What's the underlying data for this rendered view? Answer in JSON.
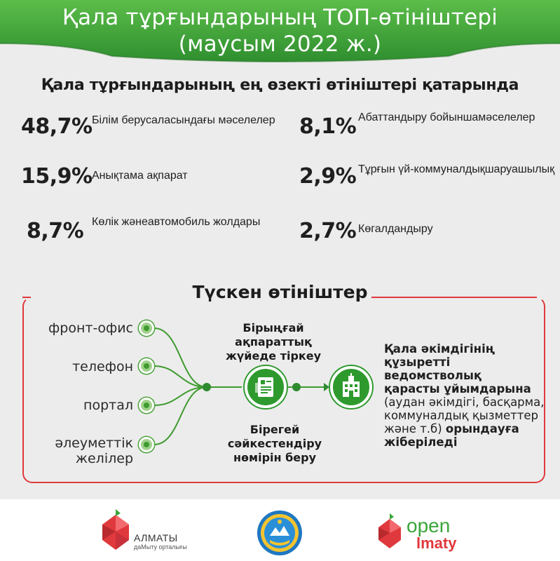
{
  "header": {
    "title_line1": "Қала тұрғындарының ТОП-өтініштері",
    "title_line2": "(маусым 2022 ж.)"
  },
  "subtitle": "Қала тұрғындарының ең өзекті өтініштері қатарында",
  "stats": [
    {
      "value": "48,7%",
      "label_line1": "Білім беру",
      "label_line2": "саласындағы мәселелер"
    },
    {
      "value": "15,9%",
      "label_line1": "Анықтама ақпарат",
      "label_line2": ""
    },
    {
      "value": "8,7%",
      "label_line1": "Көлік және",
      "label_line2": "автомобиль жолдары"
    },
    {
      "value": "8,1%",
      "label_line1": "Абаттандыру бойынша",
      "label_line2": "мәселелер"
    },
    {
      "value": "2,9%",
      "label_line1": "Тұрғын үй-коммуналдық",
      "label_line2": "шаруашылық"
    },
    {
      "value": "2,7%",
      "label_line1": "Көгалдандыру",
      "label_line2": ""
    }
  ],
  "flow": {
    "title": "Түскен өтініштер",
    "channels": [
      {
        "line1": "фронт-офис",
        "line2": ""
      },
      {
        "line1": "телефон",
        "line2": ""
      },
      {
        "line1": "портал",
        "line2": ""
      },
      {
        "line1": "әлеуметтік",
        "line2": "желілер"
      }
    ],
    "step1_line1": "Бірыңғай ақпараттық",
    "step1_line2": "жүйеде тіркеу",
    "step2_line1": "Бірегей сәйкестендіру",
    "step2_line2": "нөмірін беру",
    "result_bold1": "Қала әкімдігінің",
    "result_bold2": "құзыретті ведомстволық",
    "result_bold3": "қарасты ұйымдарына",
    "result_plain1": "(аудан әкімдігі, басқарма,",
    "result_plain2": "коммуналдық қызметтер",
    "result_plain3": "және т.б)",
    "result_bold4": "орындауға",
    "result_bold5": "жіберіледі"
  },
  "footer": {
    "almaty_name": "АЛМАТЫ",
    "almaty_sub": "даМыту орталығы",
    "open_word": "open",
    "open_word2": "lmaty"
  },
  "colors": {
    "header_green": "#3aa63a",
    "accent_red": "#e0393d",
    "node_green": "#2e9a2e"
  }
}
